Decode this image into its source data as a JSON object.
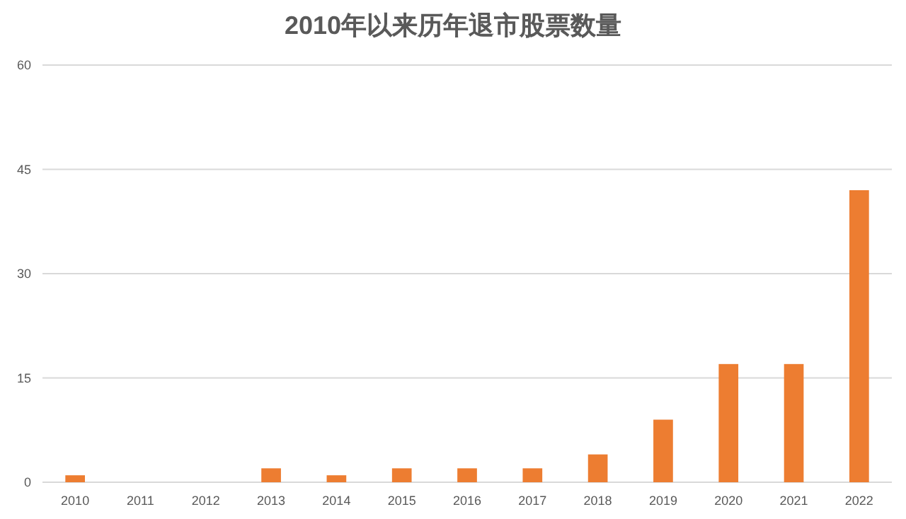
{
  "chart_data": {
    "type": "bar",
    "title": "2010年以来历年退市股票数量",
    "categories": [
      "2010",
      "2011",
      "2012",
      "2013",
      "2014",
      "2015",
      "2016",
      "2017",
      "2018",
      "2019",
      "2020",
      "2021",
      "2022"
    ],
    "values": [
      1,
      0,
      0,
      2,
      1,
      2,
      2,
      2,
      4,
      9,
      17,
      17,
      42
    ],
    "color": "#ed7d31",
    "ylim": [
      0,
      60
    ],
    "yticks": [
      0,
      15,
      30,
      45,
      60
    ],
    "grid": "y"
  }
}
